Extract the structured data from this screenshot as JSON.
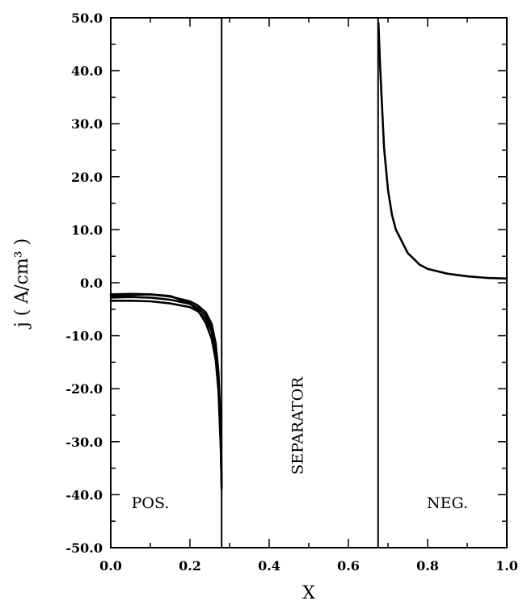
{
  "chart_data": {
    "type": "line",
    "xlabel": "X",
    "ylabel": "j ( A/cm³ )",
    "xlim": [
      0.0,
      1.0
    ],
    "ylim": [
      -50.0,
      50.0
    ],
    "x_ticks": [
      "0.0",
      "0.2",
      "0.4",
      "0.6",
      "0.8",
      "1.0"
    ],
    "y_ticks": [
      "50.0",
      "40.0",
      "30.0",
      "20.0",
      "10.0",
      "0.0",
      "-10.0",
      "-20.0",
      "-30.0",
      "-40.0",
      "-50.0"
    ],
    "region_boundaries": [
      0.28,
      0.675
    ],
    "region_labels": [
      {
        "text": "POS.",
        "x": 0.1,
        "y": -42.5,
        "orientation": "horizontal"
      },
      {
        "text": "SEPARATOR",
        "x": 0.475,
        "y": -27.0,
        "orientation": "vertical"
      },
      {
        "text": "NEG.",
        "x": 0.85,
        "y": -42.5,
        "orientation": "horizontal"
      }
    ],
    "series": [
      {
        "x": [
          0.0,
          0.05,
          0.1,
          0.15,
          0.2,
          0.22,
          0.24,
          0.255,
          0.265,
          0.272,
          0.278,
          0.28
        ],
        "y": [
          -2.2,
          -2.1,
          -2.2,
          -2.6,
          -3.5,
          -4.3,
          -5.6,
          -7.8,
          -11.5,
          -17.0,
          -28.0,
          -37.0
        ]
      },
      {
        "x": [
          0.0,
          0.05,
          0.1,
          0.15,
          0.2,
          0.22,
          0.24,
          0.255,
          0.265,
          0.272,
          0.278,
          0.28
        ],
        "y": [
          -2.8,
          -2.7,
          -2.8,
          -3.2,
          -4.0,
          -4.8,
          -6.2,
          -8.5,
          -12.5,
          -18.5,
          -30.0,
          -38.0
        ]
      },
      {
        "x": [
          0.0,
          0.05,
          0.1,
          0.15,
          0.2,
          0.22,
          0.24,
          0.255,
          0.265,
          0.272,
          0.278,
          0.28
        ],
        "y": [
          -3.4,
          -3.4,
          -3.5,
          -3.9,
          -4.6,
          -5.4,
          -6.8,
          -9.2,
          -13.2,
          -19.5,
          -31.0,
          -38.5
        ]
      },
      {
        "x": [
          0.0,
          0.05,
          0.1,
          0.15,
          0.2,
          0.22,
          0.24,
          0.255,
          0.265,
          0.272,
          0.278,
          0.28
        ],
        "y": [
          -2.5,
          -2.3,
          -2.2,
          -2.5,
          -3.9,
          -5.2,
          -7.6,
          -10.6,
          -14.6,
          -20.5,
          -31.5,
          -39.0
        ]
      },
      {
        "x": [
          0.676,
          0.68,
          0.685,
          0.69,
          0.7,
          0.71,
          0.72,
          0.75,
          0.78,
          0.8,
          0.85,
          0.9,
          0.95,
          1.0
        ],
        "y": [
          49.0,
          41.0,
          33.0,
          25.5,
          17.5,
          12.8,
          10.0,
          5.6,
          3.4,
          2.6,
          1.7,
          1.2,
          0.9,
          0.8
        ]
      }
    ]
  }
}
